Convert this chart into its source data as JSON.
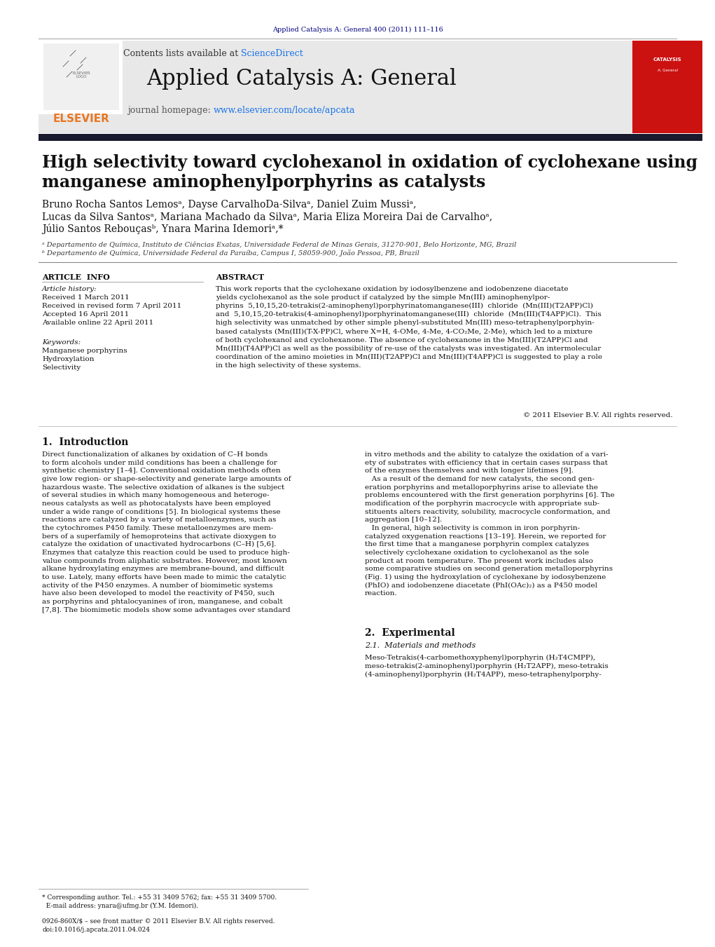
{
  "page_width": 10.21,
  "page_height": 13.51,
  "background_color": "#ffffff",
  "journal_ref_text": "Applied Catalysis A: General 400 (2011) 111–116",
  "journal_ref_color": "#000080",
  "journal_ref_fontsize": 7,
  "header_bg_color": "#e8e8e8",
  "header_title": "Applied Catalysis A: General",
  "header_title_fontsize": 22,
  "contents_text": "Contents lists available at ",
  "sciencedirect_text": "ScienceDirect",
  "sciencedirect_color": "#1a73e8",
  "journal_homepage_text": "journal homepage: ",
  "journal_url": "www.elsevier.com/locate/apcata",
  "journal_url_color": "#1a73e8",
  "header_text_fontsize": 9,
  "dark_bar_color": "#1a1a2e",
  "elsevier_color": "#e87722",
  "article_title_line1": "High selectivity toward cyclohexanol in oxidation of cyclohexane using",
  "article_title_line2": "manganese aminophenylporphyrins as catalysts",
  "article_title_fontsize": 17,
  "authors_line1": "Bruno Rocha Santos Lemosᵃ, Dayse CarvalhoDa-Silvaᵃ, Daniel Zuim Mussiᵃ,",
  "authors_line2": "Lucas da Silva Santosᵃ, Mariana Machado da Silvaᵃ, Maria Eliza Moreira Dai de Carvalhoᵃ,",
  "authors_line3": "Júlio Santos Rebouçasᵇ, Ynara Marina Idemoriᵃ,*",
  "authors_fontsize": 10,
  "affil_a": "ᵃ Departamento de Química, Instituto de Ciências Exatas, Universidade Federal de Minas Gerais, 31270-901, Belo Horizonte, MG, Brazil",
  "affil_b": "ᵇ Departamento de Química, Universidade Federal da Paraíba, Campus I, 58059-900, João Pessoa, PB, Brazil",
  "affil_fontsize": 7,
  "article_info_title": "ARTICLE  INFO",
  "abstract_title": "ABSTRACT",
  "section_title_fontsize": 8,
  "article_history_label": "Article history:",
  "received_1": "Received 1 March 2011",
  "received_revised": "Received in revised form 7 April 2011",
  "accepted": "Accepted 16 April 2011",
  "available": "Available online 22 April 2011",
  "history_fontsize": 7.5,
  "keywords_label": "Keywords:",
  "keyword1": "Manganese porphyrins",
  "keyword2": "Hydroxylation",
  "keyword3": "Selectivity",
  "abstract_text": "This work reports that the cyclohexane oxidation by iodosylbenzene and iodobenzene diacetate\nyields cyclohexanol as the sole product if catalyzed by the simple Mn(III) aminophenylpor-\nphyrins  5,10,15,20-tetrakis(2-aminophenyl)porphyrinatomanganese(III)  chloride  (Mn(III)(T2APP)Cl)\nand  5,10,15,20-tetrakis(4-aminophenyl)porphyrinatomanganese(III)  chloride  (Mn(III)(T4APP)Cl).  This\nhigh selectivity was unmatched by other simple phenyl-substituted Mn(III) meso-tetraphenylporphyin-\nbased catalysts (Mn(III)(T-X-PP)Cl, where X=H, 4-OMe, 4-Me, 4-CO₂Me, 2-Me), which led to a mixture\nof both cyclohexanol and cyclohexanone. The absence of cyclohexanone in the Mn(III)(T2APP)Cl and\nMn(III)(T4APP)Cl as well as the possibility of re-use of the catalysts was investigated. An intermolecular\ncoordination of the amino moieties in Mn(III)(T2APP)Cl and Mn(III)(T4APP)Cl is suggested to play a role\nin the high selectivity of these systems.",
  "abstract_fontsize": 7.5,
  "copyright_text": "© 2011 Elsevier B.V. All rights reserved.",
  "copyright_fontsize": 7.5,
  "intro_title": "1.  Introduction",
  "intro_title_fontsize": 10,
  "intro_text_col1": "Direct functionalization of alkanes by oxidation of C–H bonds\nto form alcohols under mild conditions has been a challenge for\nsynthetic chemistry [1–4]. Conventional oxidation methods often\ngive low region- or shape-selectivity and generate large amounts of\nhazardous waste. The selective oxidation of alkanes is the subject\nof several studies in which many homogeneous and heteroge-\nneous catalysts as well as photocatalysts have been employed\nunder a wide range of conditions [5]. In biological systems these\nreactions are catalyzed by a variety of metalloenzymes, such as\nthe cytochromes P450 family. These metalloenzymes are mem-\nbers of a superfamily of hemoproteins that activate dioxygen to\ncatalyze the oxidation of unactivated hydrocarbons (C–H) [5,6].\nEnzymes that catalyze this reaction could be used to produce high-\nvalue compounds from aliphatic substrates. However, most known\nalkane hydroxylating enzymes are membrane-bound, and difficult\nto use. Lately, many efforts have been made to mimic the catalytic\nactivity of the P450 enzymes. A number of biomimetic systems\nhave also been developed to model the reactivity of P450, such\nas porphyrins and phtalocyanines of iron, manganese, and cobalt\n[7,8]. The biomimetic models show some advantages over standard",
  "intro_text_col2": "in vitro methods and the ability to catalyze the oxidation of a vari-\nety of substrates with efficiency that in certain cases surpass that\nof the enzymes themselves and with longer lifetimes [9].\n   As a result of the demand for new catalysts, the second gen-\neration porphyrins and metalloporphyrins arise to alleviate the\nproblems encountered with the first generation porphyrins [6]. The\nmodification of the porphyrin macrocycle with appropriate sub-\nstituents alters reactivity, solubility, macrocycle conformation, and\naggregation [10–12].\n   In general, high selectivity is common in iron porphyrin-\ncatalyzed oxygenation reactions [13–19]. Herein, we reported for\nthe first time that a manganese porphyrin complex catalyzes\nselectively cyclohexane oxidation to cyclohexanol as the sole\nproduct at room temperature. The present work includes also\nsome comparative studies on second generation metalloporphyrins\n(Fig. 1) using the hydroxylation of cyclohexane by iodosybenzene\n(PhIO) and iodobenzene diacetate (PhI(OAc)₂) as a P450 model\nreaction.",
  "section2_title": "2.  Experimental",
  "section21_title": "2.1.  Materials and methods",
  "section21_text": "Meso-Tetrakis(4-carbomethoxyphenyl)porphyrin (H₂T4CMPP),\nmeso-tetrakis(2-aminophenyl)porphyrin (H₂T2APP), meso-tetrakis\n(4-aminophenyl)porphyrin (H₂T4APP), meso-tetraphenylporphy-",
  "body_fontsize": 7.5,
  "footnote_text": "* Corresponding author. Tel.: +55 31 3409 5762; fax: +55 31 3409 5700.\n  E-mail address: ynara@ufmg.br (Y.M. Idemori).",
  "issn_text": "0926-860X/$ – see front matter © 2011 Elsevier B.V. All rights reserved.\ndoi:10.1016/j.apcata.2011.04.024",
  "footnote_fontsize": 6.5
}
